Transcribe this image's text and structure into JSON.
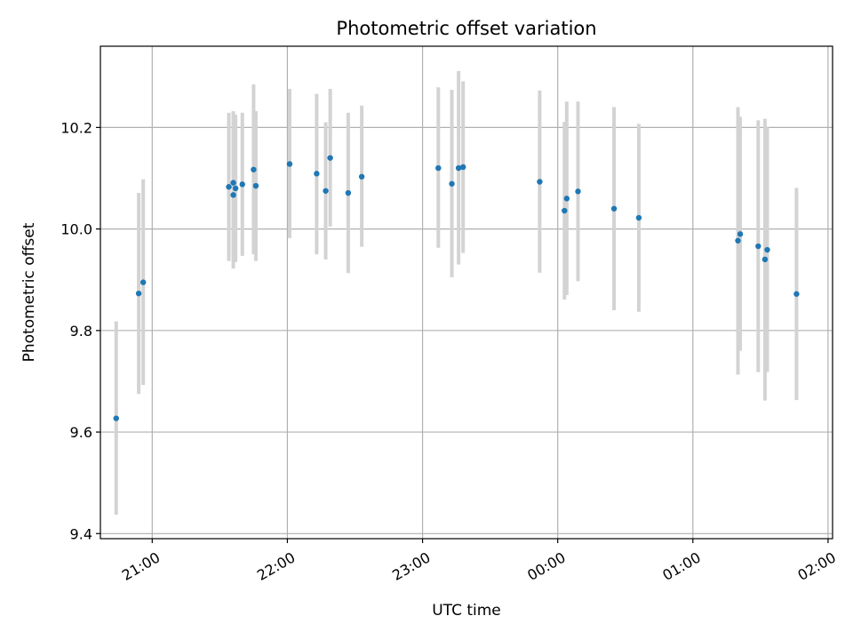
{
  "chart_data": {
    "type": "scatter",
    "title": "Photometric offset variation",
    "xlabel": "UTC time",
    "ylabel": "Photometric offset",
    "x_unit": "time (HH:MM, UTC)",
    "xlim": [
      "20:37",
      "02:02"
    ],
    "ylim": [
      9.39,
      10.36
    ],
    "grid": true,
    "xticks": [
      {
        "time": "21:00",
        "label": "21:00"
      },
      {
        "time": "22:00",
        "label": "22:00"
      },
      {
        "time": "23:00",
        "label": "23:00"
      },
      {
        "time": "00:00",
        "label": "00:00"
      },
      {
        "time": "01:00",
        "label": "01:00"
      },
      {
        "time": "02:00",
        "label": "02:00"
      }
    ],
    "yticks": [
      9.4,
      9.6,
      9.8,
      10.0,
      10.2
    ],
    "colors": {
      "marker": "#1f77b4",
      "errorbar": "#d3d3d3"
    },
    "series": [
      {
        "points": [
          {
            "time": "20:44",
            "y": 9.627,
            "lo": 9.437,
            "hi": 9.818
          },
          {
            "time": "20:54",
            "y": 9.873,
            "lo": 9.675,
            "hi": 10.071
          },
          {
            "time": "20:56",
            "y": 9.895,
            "lo": 9.693,
            "hi": 10.098
          },
          {
            "time": "21:34",
            "y": 10.083,
            "lo": 9.937,
            "hi": 10.229
          },
          {
            "time": "21:36",
            "y": 10.067,
            "lo": 9.922,
            "hi": 10.231
          },
          {
            "time": "21:36",
            "y": 10.091,
            "lo": 9.95,
            "hi": 10.232
          },
          {
            "time": "21:37",
            "y": 10.08,
            "lo": 9.935,
            "hi": 10.225
          },
          {
            "time": "21:40",
            "y": 10.088,
            "lo": 9.947,
            "hi": 10.229
          },
          {
            "time": "21:45",
            "y": 10.117,
            "lo": 9.95,
            "hi": 10.285
          },
          {
            "time": "21:46",
            "y": 10.085,
            "lo": 9.937,
            "hi": 10.232
          },
          {
            "time": "22:01",
            "y": 10.128,
            "lo": 9.982,
            "hi": 10.276
          },
          {
            "time": "22:13",
            "y": 10.109,
            "lo": 9.95,
            "hi": 10.266
          },
          {
            "time": "22:17",
            "y": 10.075,
            "lo": 9.94,
            "hi": 10.21
          },
          {
            "time": "22:19",
            "y": 10.14,
            "lo": 10.005,
            "hi": 10.276
          },
          {
            "time": "22:27",
            "y": 10.071,
            "lo": 9.913,
            "hi": 10.229
          },
          {
            "time": "22:33",
            "y": 10.103,
            "lo": 9.965,
            "hi": 10.243
          },
          {
            "time": "23:07",
            "y": 10.12,
            "lo": 9.963,
            "hi": 10.279
          },
          {
            "time": "23:13",
            "y": 10.089,
            "lo": 9.905,
            "hi": 10.274
          },
          {
            "time": "23:16",
            "y": 10.12,
            "lo": 9.93,
            "hi": 10.311
          },
          {
            "time": "23:18",
            "y": 10.122,
            "lo": 9.953,
            "hi": 10.291
          },
          {
            "time": "23:52",
            "y": 10.093,
            "lo": 9.914,
            "hi": 10.273
          },
          {
            "time": "00:03",
            "y": 10.036,
            "lo": 9.861,
            "hi": 10.211
          },
          {
            "time": "00:04",
            "y": 10.06,
            "lo": 9.87,
            "hi": 10.251
          },
          {
            "time": "00:09",
            "y": 10.074,
            "lo": 9.897,
            "hi": 10.251
          },
          {
            "time": "00:25",
            "y": 10.04,
            "lo": 9.84,
            "hi": 10.24
          },
          {
            "time": "00:36",
            "y": 10.022,
            "lo": 9.837,
            "hi": 10.207
          },
          {
            "time": "01:20",
            "y": 9.977,
            "lo": 9.713,
            "hi": 10.24
          },
          {
            "time": "01:21",
            "y": 9.99,
            "lo": 9.76,
            "hi": 10.221
          },
          {
            "time": "01:29",
            "y": 9.966,
            "lo": 9.718,
            "hi": 10.214
          },
          {
            "time": "01:32",
            "y": 9.94,
            "lo": 9.662,
            "hi": 10.217
          },
          {
            "time": "01:33",
            "y": 9.959,
            "lo": 9.718,
            "hi": 10.2
          },
          {
            "time": "01:46",
            "y": 9.872,
            "lo": 9.663,
            "hi": 10.081
          }
        ]
      }
    ]
  }
}
